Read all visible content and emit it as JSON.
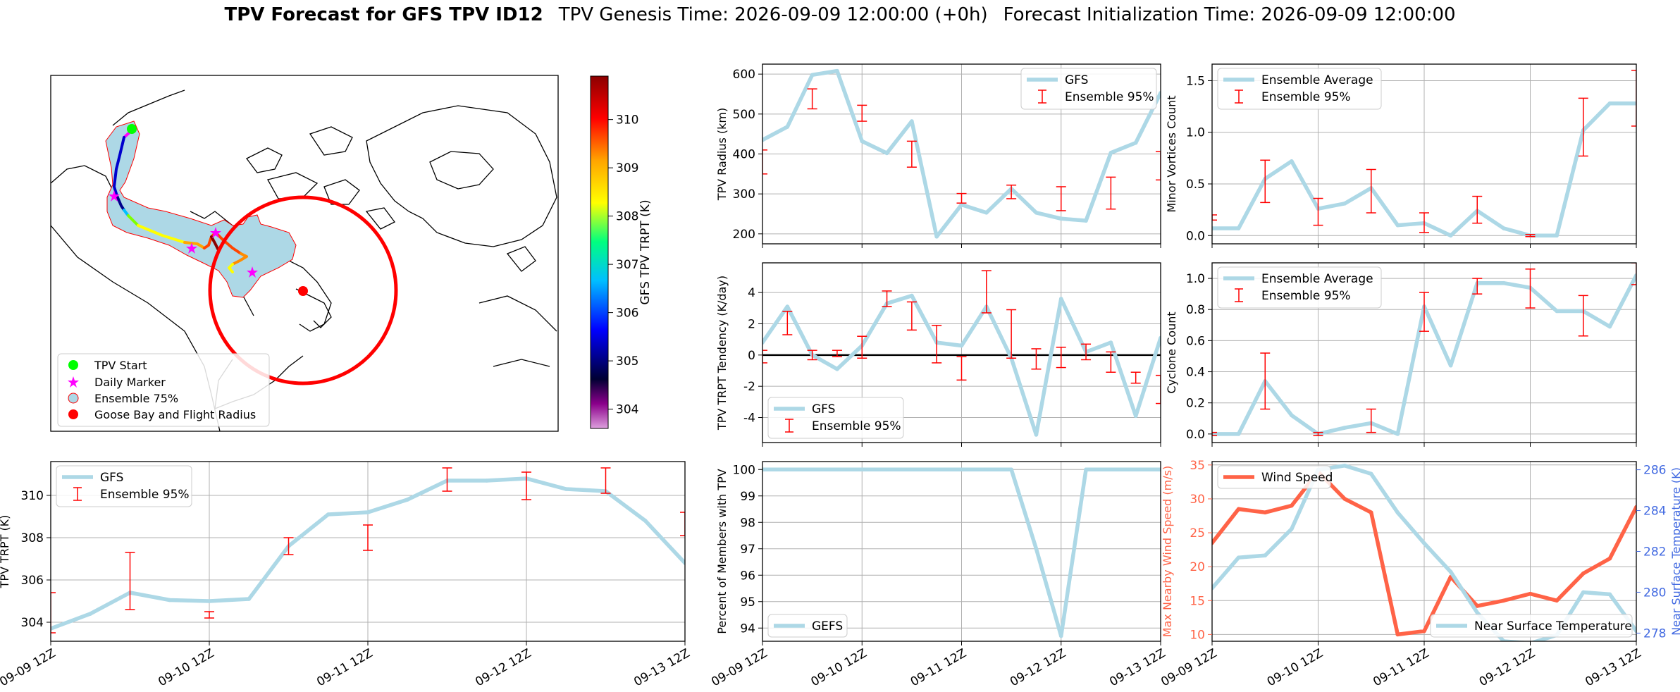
{
  "header": {
    "title_bold": "TPV Forecast for GFS TPV ID12",
    "genesis": "TPV Genesis Time: 2026-09-09 12:00:00 (+0h)",
    "init": "Forecast Initialization Time: 2026-09-09 12:00:00"
  },
  "colors": {
    "gfs_line": "#add8e6",
    "ensemble_err": "#ff0000",
    "wind": "#ff6347",
    "temp": "#add8e6",
    "wind_axis": "#ff6347",
    "temp_axis": "#4169e1",
    "map_circle": "#ff0000",
    "tpv_start": "#00ff00",
    "daily_marker": "#ff00ff"
  },
  "map": {
    "legend": [
      {
        "label": "TPV Start",
        "symbol": "green-dot-icon"
      },
      {
        "label": "Daily Marker",
        "symbol": "magenta-star-icon"
      },
      {
        "label": "Ensemble 75%",
        "symbol": "lightblue-patch-icon"
      },
      {
        "label": "Goose Bay and Flight Radius",
        "symbol": "red-dot-icon"
      }
    ],
    "colorbar": {
      "label": "GFS TPV TRPT (K)",
      "ticks": [
        "304",
        "305",
        "306",
        "307",
        "308",
        "309",
        "310"
      ],
      "min": 303.6,
      "max": 310.9
    }
  },
  "chart_data": [
    {
      "id": "radius",
      "type": "line",
      "ylabel": "TPV Radius (km)",
      "ylim": [
        175,
        625
      ],
      "yticks": [
        200,
        300,
        400,
        500,
        600
      ],
      "x": [
        0,
        0.25,
        0.5,
        0.75,
        1,
        1.25,
        1.5,
        1.75,
        2,
        2.25,
        2.5,
        2.75,
        3,
        3.25,
        3.5,
        3.75,
        4
      ],
      "series": [
        {
          "name": "GFS",
          "values": [
            435,
            468,
            598,
            608,
            432,
            402,
            482,
            193,
            273,
            253,
            313,
            253,
            238,
            233,
            403,
            428,
            553
          ]
        }
      ],
      "err_name": "Ensemble 95%",
      "errors": [
        [
          0,
          350,
          410
        ],
        [
          0.5,
          513,
          563
        ],
        [
          1,
          482,
          522
        ],
        [
          1.5,
          367,
          432
        ],
        [
          2,
          277,
          301
        ],
        [
          2.5,
          288,
          322
        ],
        [
          3,
          258,
          318
        ],
        [
          3.5,
          262,
          342
        ],
        [
          4,
          335,
          406
        ]
      ],
      "legend": "top-right"
    },
    {
      "id": "minor",
      "type": "line",
      "ylabel": "Minor Vortices Count",
      "ylim": [
        -0.08,
        1.66
      ],
      "yticks": [
        0.0,
        0.5,
        1.0,
        1.5
      ],
      "x": [
        0,
        0.25,
        0.5,
        0.75,
        1,
        1.25,
        1.5,
        1.75,
        2,
        2.25,
        2.5,
        2.75,
        3,
        3.25,
        3.5,
        3.75,
        4
      ],
      "series": [
        {
          "name": "Ensemble Average",
          "values": [
            0.07,
            0.07,
            0.55,
            0.72,
            0.26,
            0.31,
            0.46,
            0.1,
            0.12,
            0,
            0.24,
            0.07,
            0,
            0,
            1.02,
            1.28,
            1.28
          ]
        }
      ],
      "err_name": "Ensemble 95%",
      "errors": [
        [
          0,
          0.15,
          0.2
        ],
        [
          0.5,
          0.32,
          0.73
        ],
        [
          1,
          0.1,
          0.36
        ],
        [
          1.5,
          0.22,
          0.64
        ],
        [
          2,
          0.03,
          0.22
        ],
        [
          2.5,
          0.12,
          0.38
        ],
        [
          3,
          -0.01,
          0.01
        ],
        [
          3.5,
          0.77,
          1.33
        ],
        [
          4,
          1.06,
          1.6
        ]
      ],
      "legend": "top-left"
    },
    {
      "id": "tendency",
      "type": "line",
      "ylabel": "TPV TRPT Tendency (K/day)",
      "ylim": [
        -5.6,
        5.9
      ],
      "yticks": [
        -4,
        -2,
        0,
        2,
        4
      ],
      "x": [
        0,
        0.25,
        0.5,
        0.75,
        1,
        1.25,
        1.5,
        1.75,
        2,
        2.25,
        2.5,
        2.75,
        3,
        3.25,
        3.5,
        3.75,
        4
      ],
      "series": [
        {
          "name": "GFS",
          "values": [
            0.8,
            3.1,
            0,
            -0.9,
            0.6,
            3.3,
            3.8,
            0.8,
            0.6,
            3.1,
            -0.2,
            -5.1,
            3.6,
            0.2,
            0.8,
            -3.9,
            1.1
          ]
        }
      ],
      "err_name": "Ensemble 95%",
      "errors": [
        [
          0,
          -0.5,
          0.3
        ],
        [
          0.25,
          1.3,
          2.8
        ],
        [
          0.5,
          -0.3,
          0.3
        ],
        [
          0.75,
          -0.1,
          0.3
        ],
        [
          1,
          -0.2,
          1.2
        ],
        [
          1.25,
          3.1,
          4.1
        ],
        [
          1.5,
          1.6,
          3.4
        ],
        [
          1.75,
          -0.5,
          1.9
        ],
        [
          2,
          -1.6,
          -0.1
        ],
        [
          2.25,
          2.7,
          5.4
        ],
        [
          2.5,
          -0.2,
          2.9
        ],
        [
          2.75,
          -0.9,
          0.4
        ],
        [
          3,
          -0.8,
          0.5
        ],
        [
          3.25,
          -0.3,
          0.7
        ],
        [
          3.5,
          -1.1,
          0.2
        ],
        [
          3.75,
          -1.8,
          -1.1
        ],
        [
          4,
          -3.1,
          -1.3
        ]
      ],
      "hline": 0,
      "legend": "bottom-left"
    },
    {
      "id": "cyclone",
      "type": "line",
      "ylabel": "Cyclone Count",
      "ylim": [
        -0.055,
        1.1
      ],
      "yticks": [
        0.0,
        0.2,
        0.4,
        0.6,
        0.8,
        1.0
      ],
      "x": [
        0,
        0.25,
        0.5,
        0.75,
        1,
        1.25,
        1.5,
        1.75,
        2,
        2.25,
        2.5,
        2.75,
        3,
        3.25,
        3.5,
        3.75,
        4
      ],
      "series": [
        {
          "name": "Ensemble Average",
          "values": [
            0,
            0,
            0.34,
            0.12,
            0,
            0.04,
            0.07,
            0,
            0.82,
            0.44,
            0.97,
            0.97,
            0.94,
            0.79,
            0.79,
            0.69,
            1.02
          ]
        }
      ],
      "err_name": "Ensemble 95%",
      "errors": [
        [
          0,
          -0.01,
          0.01
        ],
        [
          0.5,
          0.16,
          0.52
        ],
        [
          1,
          -0.01,
          0.01
        ],
        [
          1.5,
          0.01,
          0.16
        ],
        [
          2,
          0.66,
          0.91
        ],
        [
          2.5,
          0.9,
          1.0
        ],
        [
          3,
          0.81,
          1.06
        ],
        [
          3.5,
          0.63,
          0.89
        ],
        [
          4,
          0.96,
          1.1
        ]
      ],
      "legend": "top-left"
    },
    {
      "id": "trpt",
      "type": "line",
      "ylabel": "TPV TRPT (K)",
      "ylim": [
        303.1,
        311.6
      ],
      "yticks": [
        304,
        306,
        308,
        310
      ],
      "x": [
        0,
        0.25,
        0.5,
        0.75,
        1,
        1.25,
        1.5,
        1.75,
        2,
        2.25,
        2.5,
        2.75,
        3,
        3.25,
        3.5,
        3.75,
        4
      ],
      "series": [
        {
          "name": "GFS",
          "values": [
            303.7,
            304.4,
            305.4,
            305.05,
            305.0,
            305.1,
            307.6,
            309.1,
            309.2,
            309.8,
            310.7,
            310.7,
            310.8,
            310.3,
            310.2,
            308.8,
            306.8
          ]
        }
      ],
      "err_name": "Ensemble 95%",
      "errors": [
        [
          0,
          303.5,
          305.4
        ],
        [
          0.5,
          304.6,
          307.3
        ],
        [
          1,
          304.2,
          304.5
        ],
        [
          1.5,
          307.2,
          308.0
        ],
        [
          2,
          307.4,
          308.6
        ],
        [
          2.5,
          310.2,
          311.3
        ],
        [
          3,
          309.8,
          311.1
        ],
        [
          3.5,
          310.1,
          311.3
        ],
        [
          4,
          308.1,
          309.2
        ]
      ],
      "xticks": [
        "09-09 12Z",
        "09-10 12Z",
        "09-11 12Z",
        "09-12 12Z",
        "09-13 12Z"
      ],
      "legend": "top-left"
    },
    {
      "id": "percent",
      "type": "line",
      "ylabel": "Percent of Members with TPV",
      "ylim": [
        93.5,
        100.3
      ],
      "yticks": [
        94,
        95,
        96,
        97,
        98,
        99,
        100
      ],
      "x": [
        0,
        0.25,
        0.5,
        0.75,
        1,
        1.25,
        1.5,
        1.75,
        2,
        2.25,
        2.5,
        2.75,
        3,
        3.25,
        3.5,
        3.75,
        4
      ],
      "series": [
        {
          "name": "GEFS",
          "values": [
            100,
            100,
            100,
            100,
            100,
            100,
            100,
            100,
            100,
            100,
            100,
            97,
            93.7,
            100,
            100,
            100,
            100
          ]
        }
      ],
      "xticks": [
        "09-09 12Z",
        "09-10 12Z",
        "09-11 12Z",
        "09-12 12Z",
        "09-13 12Z"
      ],
      "legend": "bottom-left"
    },
    {
      "id": "wind_temp",
      "type": "line",
      "ylabel_left": "Max Nearby Wind Speed (m/s)",
      "ylabel_right": "Near Surface Temperature (K)",
      "ylim_left": [
        9,
        35.5
      ],
      "ylim_right": [
        277.6,
        286.4
      ],
      "yticks_left": [
        10,
        15,
        20,
        25,
        30,
        35
      ],
      "yticks_right": [
        278,
        280,
        282,
        284,
        286
      ],
      "x": [
        0,
        0.25,
        0.5,
        0.75,
        1,
        1.25,
        1.5,
        1.75,
        2,
        2.25,
        2.5,
        2.75,
        3,
        3.25,
        3.5,
        3.75,
        4
      ],
      "series": [
        {
          "name": "Wind Speed",
          "axis": "left",
          "values": [
            23.5,
            28.5,
            28.0,
            29.0,
            34.0,
            30.0,
            28.0,
            10.0,
            10.5,
            18.5,
            14.2,
            15.0,
            16.0,
            15.0,
            19.0,
            21.2,
            28.8
          ]
        },
        {
          "name": "Near Surface Temperature",
          "axis": "right",
          "values": [
            280.2,
            281.7,
            281.8,
            283.1,
            286.0,
            286.2,
            285.8,
            283.9,
            282.4,
            281.0,
            279.0,
            277.6,
            277.5,
            277.9,
            280.0,
            279.9,
            278.1
          ]
        }
      ],
      "xticks": [
        "09-09 12Z",
        "09-10 12Z",
        "09-11 12Z",
        "09-12 12Z",
        "09-13 12Z"
      ]
    }
  ]
}
